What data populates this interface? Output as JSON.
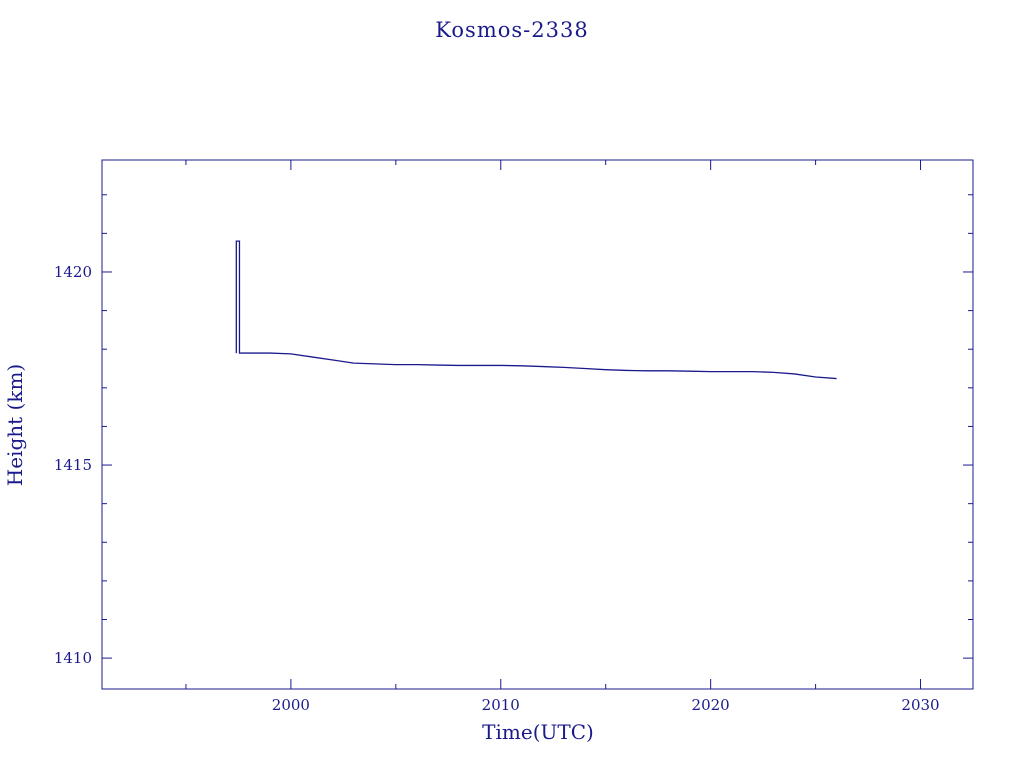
{
  "chart_data": {
    "type": "line",
    "title": "Kosmos-2338",
    "xlabel": "Time(UTC)",
    "ylabel": "Height (km)",
    "xlim": [
      1991,
      2032.5
    ],
    "ylim": [
      1409.2,
      1422.9
    ],
    "x_major_ticks": [
      2000,
      2010,
      2020,
      2030
    ],
    "x_tick_labels": [
      "2000",
      "2010",
      "2020",
      "2030"
    ],
    "x_minor_ticks": [
      1995,
      2005,
      2015,
      2025
    ],
    "y_major_ticks": [
      1410,
      1415,
      1420
    ],
    "y_tick_labels": [
      "1410",
      "1415",
      "1420"
    ],
    "y_minor_ticks": [
      1411,
      1412,
      1413,
      1414,
      1416,
      1417,
      1418,
      1419,
      1421,
      1422
    ],
    "grid": false,
    "color": "#1a1a8c",
    "series": [
      {
        "x": [
          1997.4,
          1997.4,
          1997.55,
          1997.55,
          1999.0,
          2000.0,
          2001.0,
          2002.0,
          2003.0,
          2004.0,
          2005.0,
          2006.0,
          2007.0,
          2008.0,
          2009.0,
          2010.0,
          2011.0,
          2012.0,
          2013.0,
          2014.0,
          2015.0,
          2016.0,
          2017.0,
          2018.0,
          2019.0,
          2020.0,
          2021.0,
          2022.0,
          2023.0,
          2024.0,
          2025.0,
          2026.0
        ],
        "y": [
          1417.9,
          1420.8,
          1420.8,
          1417.9,
          1417.9,
          1417.88,
          1417.8,
          1417.72,
          1417.64,
          1417.62,
          1417.6,
          1417.6,
          1417.59,
          1417.58,
          1417.58,
          1417.58,
          1417.57,
          1417.55,
          1417.53,
          1417.5,
          1417.47,
          1417.45,
          1417.44,
          1417.44,
          1417.43,
          1417.42,
          1417.42,
          1417.42,
          1417.4,
          1417.36,
          1417.28,
          1417.24
        ]
      }
    ]
  }
}
